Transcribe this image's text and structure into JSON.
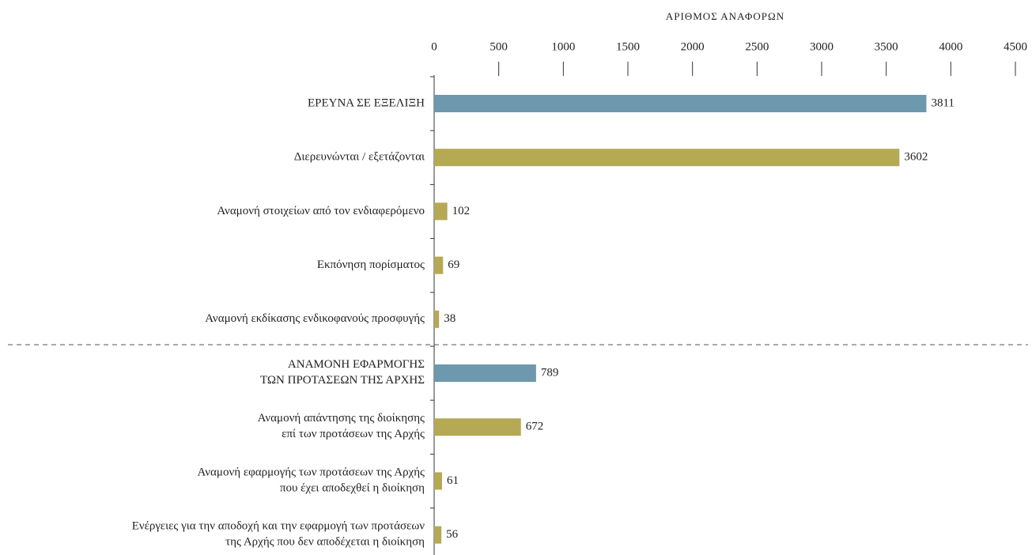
{
  "chart_data": {
    "type": "bar",
    "orientation": "horizontal",
    "x_label": "ΑΡΙΘΜΟΣ ΑΝΑΦΟΡΩΝ",
    "categories": [
      "ΕΡΕΥΝΑ ΣΕ ΕΞΕΛΙΞΗ",
      "Διερευνώνται / εξετάζονται",
      "Αναμονή στοιχείων από τον ενδιαφερόμενο",
      "Εκπόνηση πορίσματος",
      "Αναμονή εκδίκασης ενδικοφανούς προσφυγής",
      "ΑΝΑΜΟΝΗ ΕΦΑΡΜΟΓΗΣ\nΤΩΝ ΠΡΟΤΑΣΕΩΝ ΤΗΣ ΑΡΧΗΣ",
      "Αναμονή απάντησης της διοίκησης\nεπί των προτάσεων της Αρχής",
      "Αναμονή εφαρμογής των προτάσεων της Αρχής\nπου έχει αποδεχθεί η διοίκηση",
      "Ενέργειες για την αποδοχή και την εφαρμογή των προτάσεων\nτης Αρχής που δεν αποδέχεται η διοίκηση"
    ],
    "values": [
      3811,
      3602,
      102,
      69,
      38,
      789,
      672,
      61,
      56
    ],
    "colors": [
      "#6e98ad",
      "#b5a955",
      "#b5a955",
      "#b5a955",
      "#b5a955",
      "#6e98ad",
      "#b5a955",
      "#b5a955",
      "#b5a955"
    ],
    "xlim": [
      0,
      4500
    ],
    "xticks": [
      0,
      500,
      1000,
      1500,
      2000,
      2500,
      3000,
      3500,
      4000,
      4500
    ]
  }
}
